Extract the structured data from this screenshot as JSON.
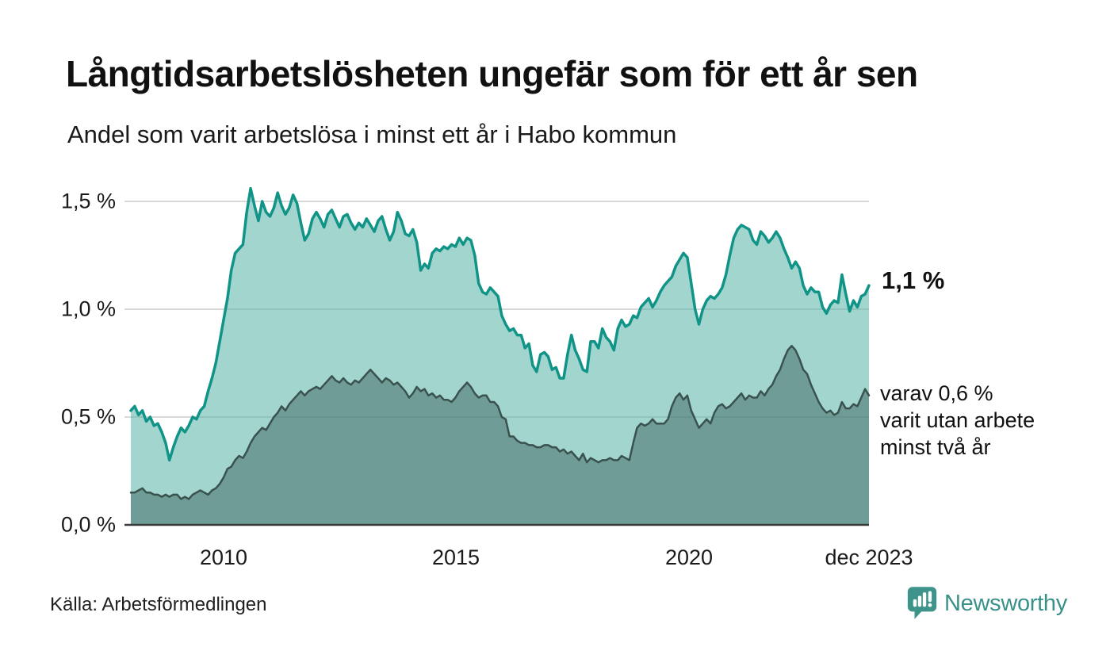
{
  "header": {
    "title": "Långtidsarbetslösheten ungefär som för ett år sen",
    "subtitle": "Andel som varit arbetslösa i minst ett år i Habo kommun"
  },
  "annotations": {
    "latest_total": "1,1 %",
    "two_year_note_lines": [
      "varav 0,6 %",
      "varit utan arbete",
      "minst två år"
    ]
  },
  "footer": {
    "source": "Källa: Arbetsförmedlingen",
    "brand": "Newsworthy"
  },
  "colors": {
    "accent_teal": "#119488",
    "light_fill": "#a5d6d0",
    "dark_fill": "#6f9c96",
    "dark_line": "#3a524e",
    "brand_teal": "#39918a",
    "gridline": "#d9d9d9",
    "axis": "#3a3a3a"
  },
  "chart_data": {
    "type": "area",
    "title": "Långtidsarbetslösheten ungefär som för ett år sen",
    "subtitle": "Andel som varit arbetslösa i minst ett år i Habo kommun",
    "unit": "%",
    "x_start_year": 2008,
    "x_end_label_month": "dec 2023",
    "points_per_year": 12,
    "x_tick_labels": [
      "2010",
      "2015",
      "2020",
      "dec 2023"
    ],
    "x_tick_years": [
      2010,
      2015,
      2020,
      2023.92
    ],
    "y_tick_labels": [
      "1,5 %",
      "1,0 %",
      "0,5 %",
      "0,0 %"
    ],
    "y_ticks": [
      1.5,
      1.0,
      0.5,
      0.0
    ],
    "ylim": [
      0,
      1.6
    ],
    "grid": true,
    "legend_position": "none",
    "series": [
      {
        "name": "arbetslösa minst ett år",
        "end_label": "1,1 %",
        "end_value": 1.1,
        "values": [
          0.53,
          0.55,
          0.51,
          0.53,
          0.48,
          0.5,
          0.46,
          0.47,
          0.43,
          0.38,
          0.3,
          0.36,
          0.41,
          0.45,
          0.43,
          0.46,
          0.5,
          0.49,
          0.53,
          0.55,
          0.62,
          0.68,
          0.75,
          0.85,
          0.95,
          1.05,
          1.18,
          1.26,
          1.28,
          1.3,
          1.45,
          1.56,
          1.48,
          1.41,
          1.5,
          1.45,
          1.43,
          1.47,
          1.54,
          1.48,
          1.44,
          1.47,
          1.53,
          1.49,
          1.4,
          1.32,
          1.35,
          1.42,
          1.45,
          1.42,
          1.38,
          1.44,
          1.46,
          1.42,
          1.38,
          1.43,
          1.44,
          1.4,
          1.37,
          1.4,
          1.38,
          1.42,
          1.39,
          1.36,
          1.41,
          1.43,
          1.37,
          1.32,
          1.36,
          1.45,
          1.41,
          1.35,
          1.34,
          1.37,
          1.31,
          1.18,
          1.21,
          1.19,
          1.26,
          1.28,
          1.27,
          1.29,
          1.28,
          1.3,
          1.29,
          1.33,
          1.3,
          1.33,
          1.32,
          1.25,
          1.12,
          1.08,
          1.07,
          1.1,
          1.08,
          1.06,
          0.97,
          0.93,
          0.9,
          0.91,
          0.88,
          0.88,
          0.82,
          0.84,
          0.74,
          0.71,
          0.79,
          0.8,
          0.78,
          0.72,
          0.73,
          0.68,
          0.68,
          0.79,
          0.88,
          0.81,
          0.77,
          0.72,
          0.71,
          0.85,
          0.85,
          0.82,
          0.91,
          0.87,
          0.85,
          0.81,
          0.91,
          0.95,
          0.92,
          0.93,
          0.97,
          0.96,
          1.01,
          1.03,
          1.05,
          1.01,
          1.04,
          1.08,
          1.11,
          1.13,
          1.15,
          1.2,
          1.23,
          1.26,
          1.24,
          1.12,
          1.0,
          0.93,
          1.0,
          1.04,
          1.06,
          1.05,
          1.07,
          1.1,
          1.16,
          1.25,
          1.33,
          1.37,
          1.39,
          1.38,
          1.37,
          1.32,
          1.3,
          1.36,
          1.34,
          1.31,
          1.33,
          1.36,
          1.33,
          1.28,
          1.24,
          1.19,
          1.22,
          1.19,
          1.11,
          1.07,
          1.1,
          1.08,
          1.08,
          1.01,
          0.98,
          1.02,
          1.04,
          1.03,
          1.16,
          1.07,
          0.99,
          1.04,
          1.01,
          1.06,
          1.07,
          1.11
        ]
      },
      {
        "name": "varav varit utan arbete minst två år",
        "end_label": "varav 0,6 % varit utan arbete minst två år",
        "end_value": 0.6,
        "values": [
          0.15,
          0.15,
          0.16,
          0.17,
          0.15,
          0.15,
          0.14,
          0.14,
          0.13,
          0.14,
          0.13,
          0.14,
          0.14,
          0.12,
          0.13,
          0.12,
          0.14,
          0.15,
          0.16,
          0.15,
          0.14,
          0.16,
          0.17,
          0.19,
          0.22,
          0.26,
          0.27,
          0.3,
          0.32,
          0.31,
          0.34,
          0.38,
          0.41,
          0.43,
          0.45,
          0.44,
          0.47,
          0.5,
          0.52,
          0.55,
          0.53,
          0.56,
          0.58,
          0.6,
          0.62,
          0.6,
          0.62,
          0.63,
          0.64,
          0.63,
          0.65,
          0.67,
          0.69,
          0.67,
          0.66,
          0.68,
          0.66,
          0.65,
          0.67,
          0.66,
          0.68,
          0.7,
          0.72,
          0.7,
          0.68,
          0.66,
          0.68,
          0.67,
          0.65,
          0.66,
          0.64,
          0.62,
          0.59,
          0.61,
          0.64,
          0.62,
          0.63,
          0.6,
          0.61,
          0.59,
          0.6,
          0.58,
          0.58,
          0.57,
          0.59,
          0.62,
          0.64,
          0.66,
          0.64,
          0.61,
          0.59,
          0.6,
          0.6,
          0.57,
          0.57,
          0.55,
          0.5,
          0.49,
          0.41,
          0.41,
          0.39,
          0.38,
          0.38,
          0.37,
          0.37,
          0.36,
          0.36,
          0.37,
          0.37,
          0.36,
          0.36,
          0.34,
          0.35,
          0.33,
          0.34,
          0.32,
          0.3,
          0.33,
          0.29,
          0.31,
          0.3,
          0.29,
          0.3,
          0.3,
          0.31,
          0.3,
          0.3,
          0.32,
          0.31,
          0.3,
          0.38,
          0.45,
          0.47,
          0.46,
          0.47,
          0.49,
          0.47,
          0.47,
          0.47,
          0.49,
          0.55,
          0.59,
          0.61,
          0.58,
          0.6,
          0.53,
          0.49,
          0.45,
          0.47,
          0.49,
          0.47,
          0.52,
          0.55,
          0.56,
          0.54,
          0.55,
          0.57,
          0.59,
          0.61,
          0.58,
          0.6,
          0.59,
          0.59,
          0.62,
          0.6,
          0.63,
          0.65,
          0.69,
          0.72,
          0.77,
          0.81,
          0.83,
          0.81,
          0.77,
          0.72,
          0.7,
          0.65,
          0.61,
          0.57,
          0.54,
          0.52,
          0.53,
          0.51,
          0.52,
          0.57,
          0.54,
          0.54,
          0.56,
          0.55,
          0.59,
          0.63,
          0.6
        ]
      }
    ]
  }
}
